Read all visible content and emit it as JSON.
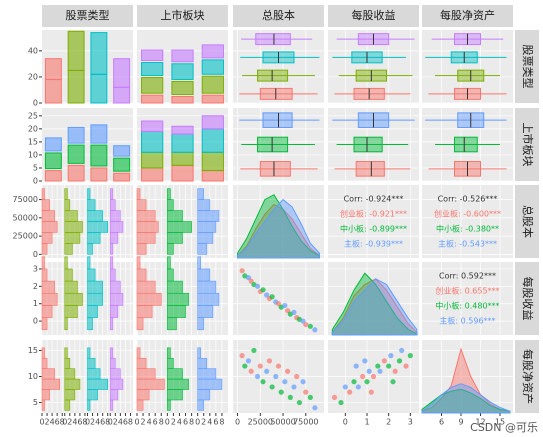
{
  "chart_data": {
    "type": "pairs",
    "variables": [
      "股票类型",
      "上市板块",
      "总股本",
      "每股收益",
      "每股净资产"
    ],
    "type_colors": [
      "#F8766D",
      "#7CAE00",
      "#00BFC4",
      "#C77CFF"
    ],
    "board_colors": [
      "#F8766D",
      "#00BA38",
      "#619CFF"
    ],
    "grid": true,
    "xaxes": [
      {
        "lim": [
          0,
          9
        ],
        "ticks": [
          0,
          2,
          4,
          6,
          8
        ]
      },
      {
        "lim": [
          0,
          10
        ],
        "ticks": [
          0,
          2,
          4,
          6,
          8
        ]
      },
      {
        "lim": [
          -5000,
          95000
        ],
        "ticks": [
          0,
          25000,
          50000,
          75000
        ]
      },
      {
        "lim": [
          -0.8,
          3.4
        ],
        "ticks": [
          0,
          1,
          2,
          3
        ]
      },
      {
        "lim": [
          3,
          17
        ],
        "ticks": [
          6,
          9,
          12,
          15
        ]
      }
    ],
    "yaxes": [
      {
        "lim": [
          0,
          56
        ],
        "ticks": [
          0,
          20,
          40
        ]
      },
      {
        "lim": [
          0,
          28
        ],
        "ticks": [
          0,
          5,
          10,
          15,
          20,
          25
        ]
      },
      {
        "lim": [
          -5000,
          95000
        ],
        "ticks": [
          0,
          25000,
          50000,
          75000
        ]
      },
      {
        "lim": [
          -0.8,
          3.4
        ],
        "ticks": [
          0,
          1,
          2,
          3
        ]
      },
      {
        "lim": [
          3,
          17
        ],
        "ticks": [
          5,
          10,
          15
        ]
      }
    ],
    "diag_type_bars": [
      [
        18,
        16
      ],
      [
        25,
        30
      ],
      [
        22,
        32
      ],
      [
        12,
        22
      ]
    ],
    "type_by_board": [
      [
        6,
        12,
        10,
        8
      ],
      [
        5,
        10,
        12,
        9
      ],
      [
        6,
        13,
        11,
        10
      ]
    ],
    "board_by_type": [
      [
        4,
        6,
        5
      ],
      [
        6,
        7,
        6
      ],
      [
        5,
        8,
        7
      ],
      [
        3,
        5,
        4
      ]
    ],
    "diag_board_bars": [
      [
        5,
        6,
        8,
        4
      ],
      [
        6,
        5,
        7,
        3
      ],
      [
        4,
        7,
        9,
        5
      ]
    ],
    "boxes_by_type": [
      [
        [
          2000,
          25000,
          42000,
          60000,
          88000
        ],
        [
          5000,
          22000,
          38000,
          55000,
          85000
        ],
        [
          3000,
          28000,
          45000,
          62000,
          90000
        ],
        [
          4000,
          20000,
          40000,
          58000,
          82000
        ]
      ],
      [
        [
          -0.5,
          0.4,
          1.1,
          1.8,
          3.0
        ],
        [
          -0.3,
          0.5,
          1.2,
          1.9,
          3.1
        ],
        [
          -0.6,
          0.3,
          1.0,
          1.7,
          2.8
        ],
        [
          -0.4,
          0.6,
          1.3,
          2.0,
          3.2
        ]
      ],
      [
        [
          4,
          8,
          10,
          12,
          16
        ],
        [
          5,
          8.5,
          10.5,
          12.5,
          15
        ],
        [
          3.5,
          7.5,
          9.5,
          11.5,
          16
        ],
        [
          4.5,
          8,
          10,
          12,
          15.5
        ]
      ]
    ],
    "boxes_by_board": [
      [
        [
          3000,
          25000,
          40000,
          58000,
          88000
        ],
        [
          4000,
          22000,
          38000,
          55000,
          85000
        ],
        [
          2000,
          28000,
          45000,
          60000,
          90000
        ]
      ],
      [
        [
          -0.5,
          0.5,
          1.2,
          1.8,
          3.0
        ],
        [
          -0.4,
          0.4,
          1.0,
          1.7,
          2.9
        ],
        [
          -0.6,
          0.6,
          1.3,
          2.0,
          3.2
        ]
      ],
      [
        [
          4,
          8,
          10,
          12,
          16
        ],
        [
          5,
          8,
          9.5,
          11.5,
          15
        ],
        [
          3.5,
          8.5,
          10.5,
          12.5,
          16
        ]
      ]
    ],
    "histograms": [
      {
        "bins": [
          0,
          15000,
          30000,
          45000,
          60000,
          75000,
          90000
        ],
        "by_type": [
          [
            2,
            4,
            6,
            5,
            3,
            1
          ],
          [
            3,
            6,
            7,
            5,
            2,
            1
          ],
          [
            2,
            5,
            8,
            6,
            3,
            1
          ],
          [
            1,
            3,
            5,
            4,
            2,
            1
          ]
        ],
        "by_board": [
          [
            3,
            6,
            7,
            6,
            3,
            1
          ],
          [
            2,
            5,
            8,
            5,
            2,
            1
          ],
          [
            3,
            5,
            6,
            7,
            4,
            2
          ]
        ]
      },
      {
        "bins": [
          -0.5,
          0.2,
          0.9,
          1.6,
          2.3,
          3.0,
          3.7
        ],
        "by_type": [
          [
            2,
            4,
            6,
            5,
            2,
            1
          ],
          [
            1,
            5,
            7,
            5,
            3,
            1
          ],
          [
            2,
            4,
            6,
            6,
            3,
            1
          ],
          [
            1,
            3,
            5,
            4,
            2,
            1
          ]
        ],
        "by_board": [
          [
            2,
            5,
            8,
            6,
            3,
            1
          ],
          [
            3,
            6,
            7,
            5,
            2,
            1
          ],
          [
            2,
            5,
            7,
            6,
            4,
            1
          ]
        ]
      },
      {
        "bins": [
          3.5,
          5.5,
          7.5,
          9.5,
          11.5,
          13.5,
          15.5
        ],
        "by_type": [
          [
            1,
            3,
            7,
            5,
            2,
            1
          ],
          [
            2,
            4,
            6,
            4,
            2,
            1
          ],
          [
            1,
            4,
            8,
            5,
            3,
            1
          ],
          [
            1,
            3,
            5,
            4,
            2,
            1
          ]
        ],
        "by_board": [
          [
            2,
            4,
            9,
            6,
            3,
            1
          ],
          [
            1,
            5,
            7,
            5,
            2,
            1
          ],
          [
            2,
            4,
            8,
            6,
            3,
            1
          ]
        ]
      }
    ],
    "densities": [
      {
        "x": [
          0,
          10000,
          20000,
          30000,
          40000,
          50000,
          60000,
          70000,
          80000,
          90000
        ],
        "dlim": [
          0,
          3
        ],
        "series": [
          [
            0.1,
            0.5,
            1.2,
            1.8,
            2.2,
            2.0,
            1.6,
            1.0,
            0.4,
            0.1
          ],
          [
            0.2,
            0.8,
            1.6,
            2.4,
            2.6,
            2.0,
            1.3,
            0.7,
            0.3,
            0.1
          ],
          [
            0.1,
            0.4,
            1.0,
            1.5,
            2.0,
            2.4,
            2.1,
            1.4,
            0.6,
            0.2
          ]
        ]
      },
      {
        "x": [
          -0.6,
          -0.1,
          0.4,
          0.9,
          1.4,
          1.9,
          2.4,
          2.9,
          3.3
        ],
        "dlim": [
          0,
          1.3
        ],
        "series": [
          [
            0.05,
            0.3,
            0.7,
            0.9,
            1.0,
            0.8,
            0.5,
            0.2,
            0.05
          ],
          [
            0.1,
            0.4,
            0.8,
            1.1,
            0.9,
            0.6,
            0.3,
            0.1,
            0.02
          ],
          [
            0.05,
            0.25,
            0.6,
            0.8,
            1.0,
            0.9,
            0.6,
            0.3,
            0.1
          ]
        ]
      },
      {
        "x": [
          3,
          4.5,
          6,
          7.5,
          9,
          10.5,
          12,
          13.5,
          15,
          16.5
        ],
        "dlim": [
          0,
          0.4
        ],
        "series": [
          [
            0.01,
            0.03,
            0.08,
            0.15,
            0.35,
            0.2,
            0.1,
            0.05,
            0.02,
            0.01
          ],
          [
            0.02,
            0.06,
            0.1,
            0.12,
            0.13,
            0.11,
            0.08,
            0.04,
            0.02,
            0.01
          ],
          [
            0.01,
            0.05,
            0.1,
            0.14,
            0.16,
            0.14,
            0.1,
            0.06,
            0.03,
            0.01
          ]
        ]
      }
    ],
    "scatters": [
      [
        [
          5000,
          2.9,
          0
        ],
        [
          8000,
          2.6,
          1
        ],
        [
          12000,
          2.5,
          2
        ],
        [
          15000,
          2.3,
          0
        ],
        [
          18000,
          2.1,
          1
        ],
        [
          22000,
          2.0,
          2
        ],
        [
          25000,
          1.7,
          0
        ],
        [
          28000,
          1.8,
          1
        ],
        [
          32000,
          1.5,
          2
        ],
        [
          35000,
          1.3,
          0
        ],
        [
          38000,
          1.4,
          1
        ],
        [
          42000,
          1.1,
          2
        ],
        [
          45000,
          1.0,
          0
        ],
        [
          48000,
          0.8,
          1
        ],
        [
          52000,
          0.9,
          2
        ],
        [
          55000,
          0.6,
          0
        ],
        [
          58000,
          0.4,
          1
        ],
        [
          62000,
          0.5,
          2
        ],
        [
          65000,
          0.2,
          0
        ],
        [
          68000,
          0.1,
          1
        ],
        [
          72000,
          0.0,
          2
        ],
        [
          75000,
          -0.2,
          0
        ],
        [
          80000,
          -0.3,
          1
        ],
        [
          85000,
          -0.5,
          2
        ]
      ],
      [
        [
          5000,
          14,
          0
        ],
        [
          8000,
          12,
          1
        ],
        [
          12000,
          13,
          2
        ],
        [
          15000,
          11,
          0
        ],
        [
          18000,
          15,
          1
        ],
        [
          22000,
          10,
          2
        ],
        [
          25000,
          12,
          0
        ],
        [
          28000,
          9,
          1
        ],
        [
          32000,
          11,
          2
        ],
        [
          35000,
          13,
          0
        ],
        [
          38000,
          8,
          1
        ],
        [
          42000,
          10,
          2
        ],
        [
          45000,
          12,
          0
        ],
        [
          48000,
          7,
          1
        ],
        [
          52000,
          9,
          2
        ],
        [
          55000,
          11,
          0
        ],
        [
          58000,
          6,
          1
        ],
        [
          62000,
          8,
          2
        ],
        [
          65000,
          10,
          0
        ],
        [
          68000,
          5,
          1
        ],
        [
          72000,
          9,
          2
        ],
        [
          75000,
          7,
          0
        ],
        [
          80000,
          6,
          1
        ],
        [
          85000,
          4,
          2
        ]
      ],
      [
        [
          -0.5,
          6,
          0
        ],
        [
          -0.2,
          5,
          1
        ],
        [
          0.0,
          8,
          2
        ],
        [
          0.2,
          7,
          0
        ],
        [
          0.4,
          9,
          1
        ],
        [
          0.6,
          8,
          2
        ],
        [
          0.8,
          10,
          0
        ],
        [
          1.0,
          9,
          1
        ],
        [
          1.1,
          11,
          2
        ],
        [
          1.3,
          10,
          0
        ],
        [
          1.5,
          12,
          1
        ],
        [
          1.6,
          11,
          2
        ],
        [
          1.8,
          13,
          0
        ],
        [
          2.0,
          12,
          1
        ],
        [
          2.1,
          14,
          2
        ],
        [
          2.3,
          11,
          0
        ],
        [
          2.5,
          13,
          1
        ],
        [
          2.6,
          15,
          2
        ],
        [
          2.8,
          12,
          0
        ],
        [
          3.0,
          14,
          1
        ],
        [
          0.5,
          12,
          2
        ],
        [
          1.2,
          7,
          0
        ],
        [
          2.2,
          9,
          1
        ],
        [
          0.9,
          13,
          2
        ]
      ]
    ],
    "corr": [
      [
        "Corr: -0.924***",
        "创业板: -0.921***",
        "中小板: -0.899***",
        "主板: -0.939***"
      ],
      [
        "Corr: -0.526***",
        "创业板: -0.600***",
        "中小板: -0.380**",
        "主板: -0.543***"
      ],
      [
        "Corr: 0.592***",
        "创业板: 0.655***",
        "中小板: 0.480***",
        "主板: 0.596***"
      ]
    ],
    "watermark": "CSDN @可乐"
  }
}
